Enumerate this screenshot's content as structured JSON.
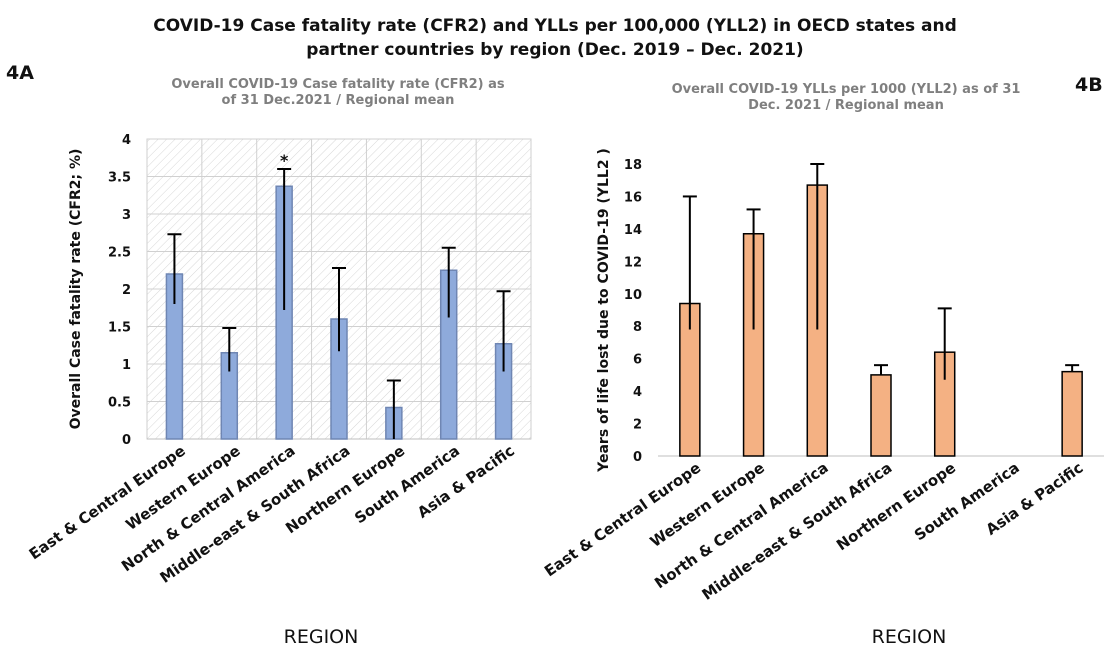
{
  "page": {
    "title_line1": "COVID-19 Case fatality rate (CFR2) and YLLs per 100,000 (YLL2) in OECD states and",
    "title_line2": "partner countries by region (Dec. 2019 – Dec. 2021)",
    "panel_a_label": "4A",
    "panel_b_label": "4B"
  },
  "chart_data": [
    {
      "type": "bar",
      "title_line1": "Overall COVID-19 Case fatality rate (CFR2) as",
      "title_line2": "of 31 Dec.2021 / Regional mean",
      "xlabel": "REGION",
      "ylabel": "Overall Case fatality rate (CFR2; %)",
      "categories": [
        "East & Central Europe",
        "Western Europe",
        "North & Central America",
        "Middle-east & South Africa",
        "Northern Europe",
        "South America",
        "Asia & Pacific"
      ],
      "values": [
        2.2,
        1.15,
        3.37,
        1.6,
        0.42,
        2.25,
        1.27
      ],
      "error_upper": [
        2.73,
        1.48,
        3.6,
        2.28,
        0.78,
        2.55,
        1.97
      ],
      "error_lower": [
        1.8,
        0.9,
        1.72,
        1.17,
        0.0,
        1.62,
        0.9
      ],
      "ylim": [
        0,
        4
      ],
      "yticks": [
        "0",
        "0.5",
        "1",
        "1.5",
        "2",
        "2.5",
        "3",
        "3.5",
        "4"
      ],
      "annotations": [
        {
          "category": "North & Central America",
          "text": "*"
        }
      ],
      "grid": true,
      "bar_color": "#8eaadb"
    },
    {
      "type": "bar",
      "title_line1": "Overall COVID-19 YLLs per 1000 (YLL2)  as of 31",
      "title_line2": "Dec. 2021 / Regional mean",
      "xlabel": "REGION",
      "ylabel": "Years of life lost due to COVID-19 (YLL2 )",
      "categories": [
        "East & Central Europe",
        "Western Europe",
        "North & Central America",
        "Middle-east & South Africa",
        "Northern Europe",
        "South America",
        "Asia & Pacific"
      ],
      "values": [
        9.4,
        13.7,
        16.7,
        5.0,
        6.4,
        null,
        5.2
      ],
      "error_upper": [
        16.0,
        15.2,
        18.0,
        5.6,
        9.1,
        null,
        5.6
      ],
      "error_lower": [
        7.8,
        7.8,
        7.8,
        5.0,
        4.7,
        null,
        5.2
      ],
      "ylim": [
        0,
        18
      ],
      "yticks": [
        "0",
        "2",
        "4",
        "6",
        "8",
        "10",
        "12",
        "14",
        "16",
        "18"
      ],
      "grid": false,
      "bar_color": "#f4b183"
    }
  ]
}
